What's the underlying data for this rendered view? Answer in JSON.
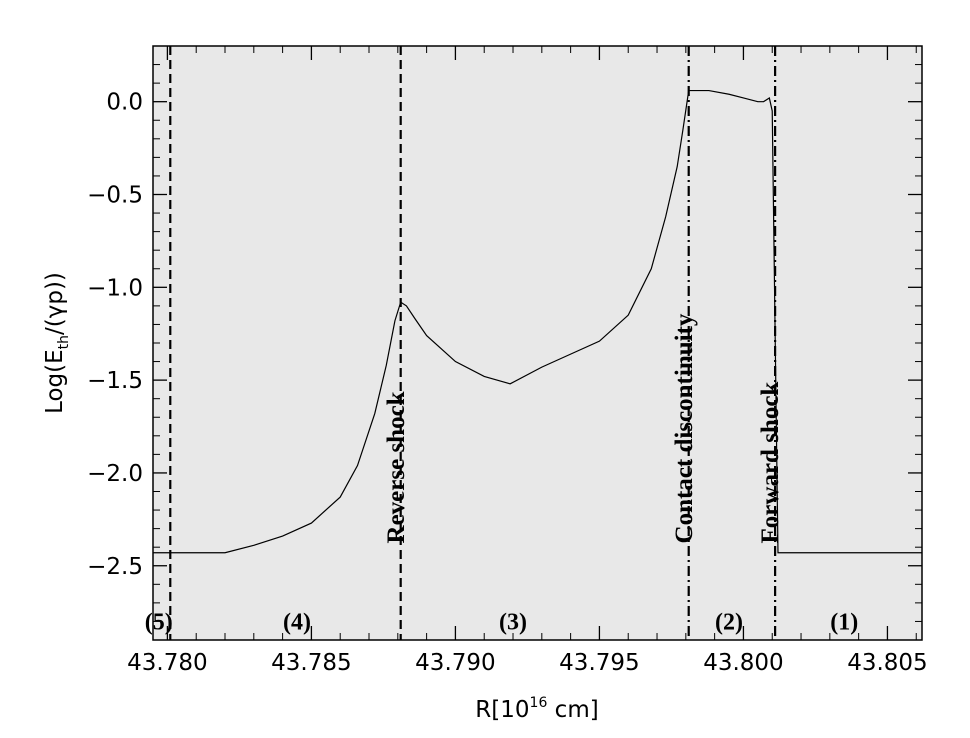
{
  "chart_data": {
    "type": "line",
    "xlabel": {
      "main": "R[10",
      "sup": "16",
      "rest": " cm]"
    },
    "ylabel": {
      "main": "Log(E",
      "sub": "th",
      "rest": "/(γp))"
    },
    "xlim": [
      43.7795,
      43.8062
    ],
    "ylim": [
      -2.9,
      0.3
    ],
    "xticks": [
      {
        "value": 43.78,
        "label": "43.780"
      },
      {
        "value": 43.785,
        "label": "43.785"
      },
      {
        "value": 43.79,
        "label": "43.790"
      },
      {
        "value": 43.795,
        "label": "43.795"
      },
      {
        "value": 43.8,
        "label": "43.800"
      },
      {
        "value": 43.805,
        "label": "43.805"
      }
    ],
    "yticks": [
      {
        "value": 0.0,
        "label": "0.0"
      },
      {
        "value": -0.5,
        "label": "−0.5"
      },
      {
        "value": -1.0,
        "label": "−1.0"
      },
      {
        "value": -1.5,
        "label": "−1.5"
      },
      {
        "value": -2.0,
        "label": "−2.0"
      },
      {
        "value": -2.5,
        "label": "−2.5"
      }
    ],
    "series": [
      {
        "x": [
          43.7795,
          43.782,
          43.783,
          43.784,
          43.785,
          43.786,
          43.7866,
          43.7872,
          43.7876,
          43.7879,
          43.7881,
          43.7883,
          43.7886,
          43.789,
          43.79,
          43.791,
          43.7919,
          43.793,
          43.794,
          43.795,
          43.796,
          43.7968,
          43.7973,
          43.7977,
          43.7979,
          43.7981,
          43.7983,
          43.7988,
          43.7995,
          43.8,
          43.8005,
          43.8007,
          43.8009,
          43.801,
          43.8012,
          43.802,
          43.8062
        ],
        "y": [
          -2.43,
          -2.43,
          -2.39,
          -2.34,
          -2.27,
          -2.13,
          -1.96,
          -1.68,
          -1.42,
          -1.18,
          -1.08,
          -1.1,
          -1.17,
          -1.26,
          -1.4,
          -1.48,
          -1.52,
          -1.43,
          -1.36,
          -1.29,
          -1.15,
          -0.9,
          -0.62,
          -0.35,
          -0.15,
          0.06,
          0.06,
          0.06,
          0.04,
          0.02,
          0.0,
          0.0,
          0.02,
          -0.05,
          -2.43,
          -2.43,
          -2.43
        ]
      }
    ],
    "vlines": [
      {
        "x": 43.7801,
        "style": "dashed"
      },
      {
        "x": 43.7881,
        "style": "dashed"
      },
      {
        "x": 43.7981,
        "style": "dashdot"
      },
      {
        "x": 43.8011,
        "style": "dashdot"
      }
    ],
    "annotations": [
      {
        "text": "Reverse shock",
        "x": 43.788,
        "y": -2.38
      },
      {
        "text": "Contact discontinuity",
        "x": 43.798,
        "y": -2.38
      },
      {
        "text": "Forward shock",
        "x": 43.801,
        "y": -2.38
      }
    ],
    "regions": [
      {
        "text": "(5)",
        "x": 43.7797,
        "y": -2.8
      },
      {
        "text": "(4)",
        "x": 43.7845,
        "y": -2.8
      },
      {
        "text": "(3)",
        "x": 43.792,
        "y": -2.8
      },
      {
        "text": "(2)",
        "x": 43.7995,
        "y": -2.8
      },
      {
        "text": "(1)",
        "x": 43.8035,
        "y": -2.8
      }
    ],
    "grid": false,
    "legend": "none",
    "colors": {
      "plot_bg": "#e8e8e8",
      "line": "#000000",
      "page_bg": "#ffffff"
    }
  }
}
